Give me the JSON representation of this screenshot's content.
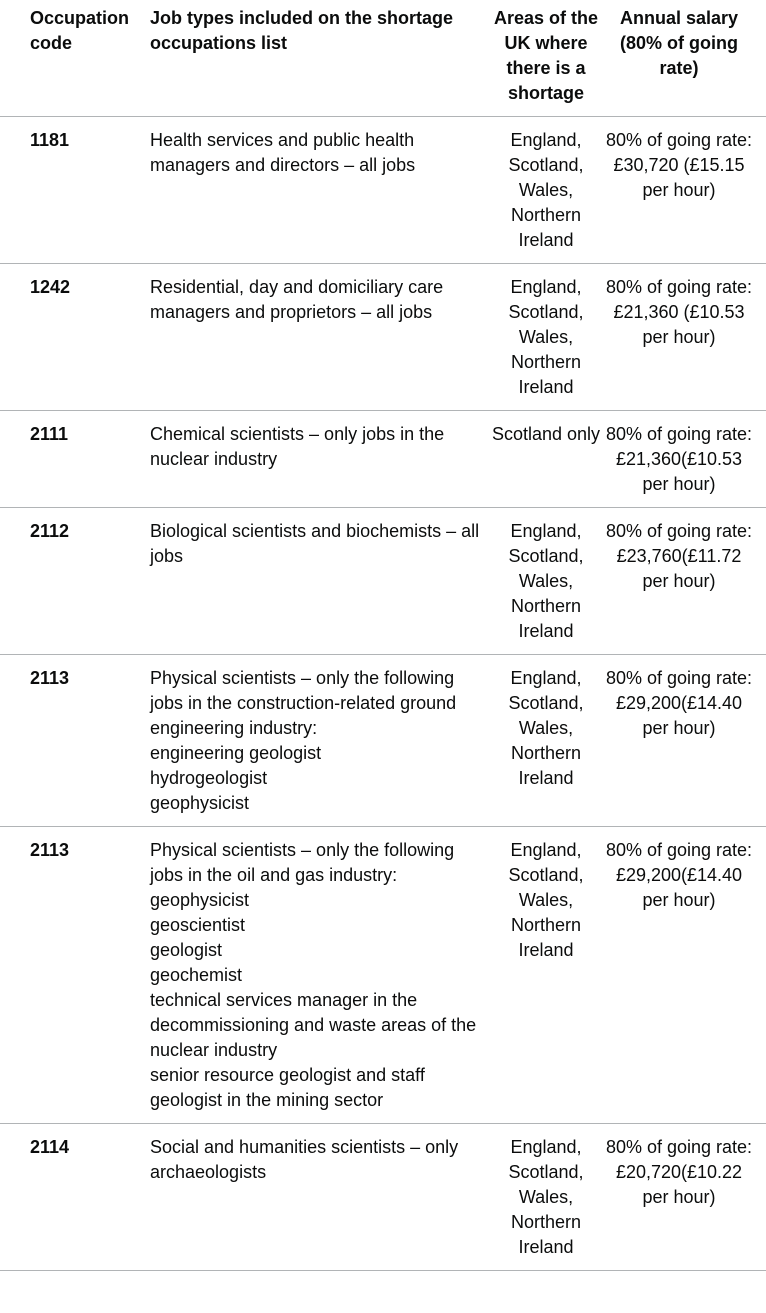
{
  "headers": {
    "code": "Occupation code",
    "jobs": "Job types included on the shortage occupations list",
    "areas": "Areas of the UK where there is a shortage",
    "salary": "Annual salary (80% of going rate)"
  },
  "rows": [
    {
      "code": "1181",
      "job_lines": [
        "Health services and public health managers and directors – all jobs"
      ],
      "areas": "England, Scotland, Wales, Northern Ireland",
      "salary": "80% of going rate: £30,720 (£15.15 per hour)"
    },
    {
      "code": "1242",
      "job_lines": [
        "Residential, day and domiciliary care managers and proprietors – all jobs"
      ],
      "areas": "England, Scotland, Wales, Northern Ireland",
      "salary": "80% of going rate: £21,360 (£10.53 per hour)"
    },
    {
      "code": "2111",
      "job_lines": [
        "Chemical scientists – only jobs in the nuclear industry"
      ],
      "areas": "Scotland only",
      "salary": "80% of going rate: £21,360(£10.53 per hour)"
    },
    {
      "code": "2112",
      "job_lines": [
        "Biological scientists and biochemists – all jobs"
      ],
      "areas": "England, Scotland, Wales, Northern Ireland",
      "salary": "80% of going rate: £23,760(£11.72 per hour)"
    },
    {
      "code": "2113",
      "job_lines": [
        "Physical scientists – only the following jobs in the construction-related ground engineering industry:",
        "engineering geologist",
        "hydrogeologist",
        "geophysicist"
      ],
      "areas": "England, Scotland, Wales, Northern Ireland",
      "salary": "80% of going rate: £29,200(£14.40 per hour)"
    },
    {
      "code": "2113",
      "job_lines": [
        "Physical scientists – only the following jobs in the oil and gas industry:",
        "geophysicist",
        "geoscientist",
        "geologist",
        "geochemist",
        "technical services manager in the decommissioning and waste areas of the nuclear industry",
        "senior resource geologist and staff geologist in the mining sector"
      ],
      "areas": "England, Scotland, Wales, Northern Ireland",
      "salary": "80% of going rate: £29,200(£14.40 per hour)"
    },
    {
      "code": "2114",
      "job_lines": [
        "Social and humanities scientists – only archaeologists"
      ],
      "areas": "England, Scotland, Wales, Northern Ireland",
      "salary": "80% of going rate: £20,720(£10.22 per hour)"
    }
  ]
}
